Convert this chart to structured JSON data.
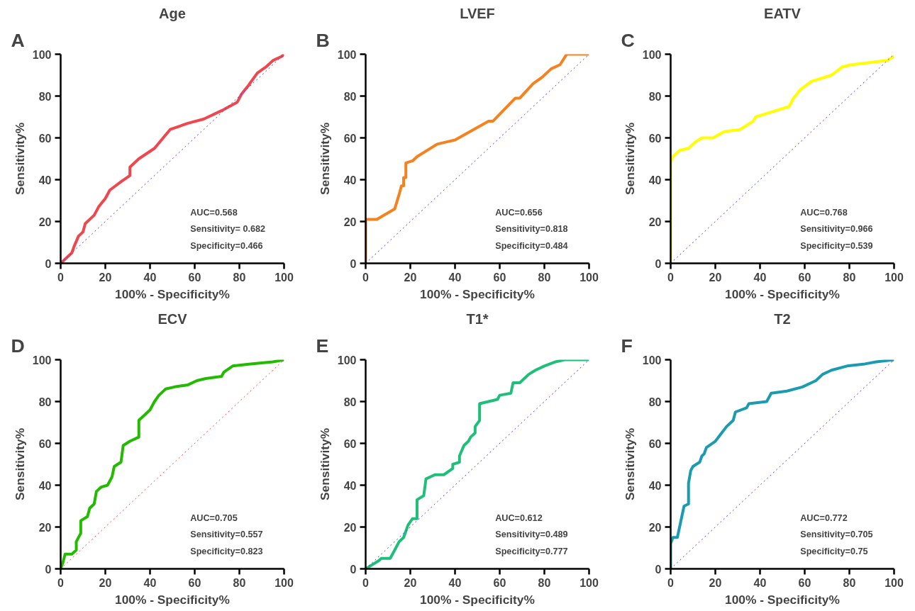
{
  "chart_data": [
    {
      "type": "line",
      "title": "Age",
      "xlabel": "100% - Specificity%",
      "ylabel": "Sensitivity%",
      "xlim": [
        0,
        100
      ],
      "ylim": [
        0,
        100
      ],
      "xticks": [
        0,
        20,
        40,
        60,
        80,
        100
      ],
      "yticks": [
        0,
        20,
        40,
        60,
        80,
        100
      ],
      "grid": false,
      "marker": "none",
      "annotations": [
        "A",
        "AUC=0.568",
        "Sensitivity= 0.682",
        "Specificity=0.466"
      ],
      "series": [
        {
          "color": "#f0474f",
          "line_style": "solid",
          "x": [
            0,
            5,
            6,
            8,
            10,
            11,
            15,
            17,
            20,
            22,
            27,
            31,
            31,
            35,
            42,
            49,
            57,
            64,
            72,
            79,
            81,
            84,
            88,
            92,
            95,
            99,
            100
          ],
          "values": [
            0,
            5,
            8,
            13,
            15,
            19,
            23,
            27,
            31,
            35,
            39,
            42,
            46,
            50,
            55,
            64,
            67,
            69,
            73,
            77,
            81,
            85,
            91,
            94,
            97,
            99,
            100
          ]
        },
        {
          "color": "#4040ff",
          "line_style": "dotted",
          "x": [
            0,
            100
          ],
          "values": [
            0,
            100
          ]
        }
      ]
    },
    {
      "type": "line",
      "title": "LVEF",
      "xlabel": "100% - Specificity%",
      "ylabel": "Sensitivity%",
      "xlim": [
        0,
        100
      ],
      "ylim": [
        0,
        100
      ],
      "xticks": [
        0,
        20,
        40,
        60,
        80,
        100
      ],
      "yticks": [
        0,
        20,
        40,
        60,
        80,
        100
      ],
      "grid": false,
      "marker": "none",
      "annotations": [
        "B",
        "AUC=0.656",
        "Sensitivity=0.818",
        "Specificity=0.484"
      ],
      "series": [
        {
          "color": "#f5821f",
          "line_style": "solid",
          "x": [
            0,
            0,
            2,
            5,
            13,
            15,
            16,
            17,
            17,
            18,
            18,
            21,
            23,
            32,
            36,
            40,
            55,
            57,
            67,
            69,
            75,
            79,
            83,
            87,
            90,
            100
          ],
          "values": [
            0,
            21,
            21,
            21,
            26,
            33,
            37,
            37,
            41,
            41,
            48,
            49,
            51,
            57,
            58,
            59,
            68,
            68,
            79,
            79,
            86,
            89,
            93,
            95,
            100,
            100
          ]
        },
        {
          "color": "#4040ff",
          "line_style": "dotted",
          "x": [
            0,
            100
          ],
          "values": [
            0,
            100
          ]
        }
      ]
    },
    {
      "type": "line",
      "title": "EATV",
      "xlabel": "100% - Specificity%",
      "ylabel": "Sensitivity%",
      "xlim": [
        0,
        100
      ],
      "ylim": [
        0,
        100
      ],
      "xticks": [
        0,
        20,
        40,
        60,
        80,
        100
      ],
      "yticks": [
        0,
        20,
        40,
        60,
        80,
        100
      ],
      "grid": false,
      "marker": "none",
      "annotations": [
        "C",
        "AUC=0.768",
        "Sensitivity=0.966",
        "Specificity=0.539"
      ],
      "series": [
        {
          "color": "#ffff00",
          "line_style": "solid",
          "x": [
            0,
            0,
            1,
            4,
            8,
            11,
            14,
            19,
            24,
            31,
            37,
            38,
            44,
            53,
            55,
            58,
            63,
            72,
            77,
            81,
            89,
            97,
            100
          ],
          "values": [
            0,
            48,
            51,
            54,
            55,
            58,
            60,
            60,
            63,
            64,
            68,
            70,
            72,
            75,
            79,
            83,
            87,
            90,
            94,
            95,
            96,
            97,
            99
          ]
        },
        {
          "color": "#4040ff",
          "line_style": "dotted",
          "x": [
            0,
            100
          ],
          "values": [
            0,
            100
          ]
        }
      ]
    },
    {
      "type": "line",
      "title": "ECV",
      "xlabel": "100% - Specificity%",
      "ylabel": "Sensitivity%",
      "xlim": [
        0,
        100
      ],
      "ylim": [
        0,
        100
      ],
      "xticks": [
        0,
        20,
        40,
        60,
        80,
        100
      ],
      "yticks": [
        0,
        20,
        40,
        60,
        80,
        100
      ],
      "grid": false,
      "marker": "none",
      "annotations": [
        "D",
        "AUC=0.705",
        "Sensitivity=0.557",
        "Specificity=0.823"
      ],
      "series": [
        {
          "color": "#22bb00",
          "line_style": "solid",
          "x": [
            0,
            1,
            2,
            5,
            7,
            7,
            9,
            9,
            12,
            13,
            15,
            16,
            18,
            21,
            23,
            24,
            27,
            28,
            31,
            35,
            35,
            38,
            40,
            42,
            44,
            47,
            51,
            57,
            61,
            65,
            72,
            73,
            77,
            85,
            95,
            100
          ],
          "values": [
            0,
            3,
            7,
            7,
            9,
            13,
            17,
            23,
            25,
            29,
            31,
            37,
            39,
            40,
            44,
            49,
            51,
            59,
            61,
            63,
            71,
            74,
            76,
            80,
            83,
            86,
            87,
            88,
            90,
            91,
            92,
            94,
            97,
            98,
            99,
            100
          ]
        },
        {
          "color": "#ff4040",
          "line_style": "dotted",
          "x": [
            0,
            100
          ],
          "values": [
            0,
            100
          ]
        }
      ]
    },
    {
      "type": "line",
      "title": "T1*",
      "xlabel": "100% - Specificity%",
      "ylabel": "Sensitivity%",
      "xlim": [
        0,
        100
      ],
      "ylim": [
        0,
        100
      ],
      "xticks": [
        0,
        20,
        40,
        60,
        80,
        100
      ],
      "yticks": [
        0,
        20,
        40,
        60,
        80,
        100
      ],
      "grid": false,
      "marker": "none",
      "annotations": [
        "E",
        "AUC=0.612",
        "Sensitivity=0.489",
        "Specificity=0.777"
      ],
      "series": [
        {
          "color": "#1fbf7a",
          "line_style": "solid",
          "x": [
            0,
            3,
            6,
            7,
            11,
            13,
            15,
            17,
            19,
            21,
            23,
            23,
            26,
            27,
            31,
            35,
            39,
            39,
            42,
            42,
            44,
            45,
            46,
            47,
            49,
            49,
            51,
            51,
            55,
            59,
            60,
            65,
            66,
            69,
            71,
            73,
            76,
            80,
            85,
            89,
            100
          ],
          "values": [
            0,
            2,
            4,
            5,
            5,
            9,
            13,
            15,
            21,
            24,
            24,
            33,
            35,
            43,
            45,
            45,
            48,
            50,
            51,
            54,
            59,
            60,
            61,
            63,
            65,
            68,
            71,
            79,
            80,
            81,
            83,
            84,
            89,
            89,
            91,
            93,
            95,
            97,
            99,
            100,
            100
          ]
        },
        {
          "color": "#4040ff",
          "line_style": "dotted",
          "x": [
            0,
            100
          ],
          "values": [
            0,
            100
          ]
        }
      ]
    },
    {
      "type": "line",
      "title": "T2",
      "xlabel": "100% - Specificity%",
      "ylabel": "Sensitivity%",
      "xlim": [
        0,
        100
      ],
      "ylim": [
        0,
        100
      ],
      "xticks": [
        0,
        20,
        40,
        60,
        80,
        100
      ],
      "yticks": [
        0,
        20,
        40,
        60,
        80,
        100
      ],
      "grid": false,
      "marker": "none",
      "annotations": [
        "F",
        "AUC=0.772",
        "Sensitivity=0.705",
        "Specificity=0.75"
      ],
      "series": [
        {
          "color": "#1a9bb0",
          "line_style": "solid",
          "x": [
            0,
            0,
            1,
            3,
            4,
            5,
            6,
            8,
            8,
            9,
            10,
            13,
            14,
            15,
            16,
            20,
            25,
            28,
            29,
            34,
            35,
            43,
            45,
            52,
            59,
            65,
            68,
            72,
            79,
            87,
            92,
            100
          ],
          "values": [
            0,
            12,
            15,
            15,
            20,
            25,
            30,
            31,
            41,
            47,
            49,
            51,
            54,
            55,
            58,
            61,
            68,
            71,
            75,
            77,
            79,
            80,
            84,
            85,
            87,
            90,
            93,
            95,
            97,
            98,
            99,
            100
          ]
        },
        {
          "color": "#4040ff",
          "line_style": "dotted",
          "x": [
            0,
            100
          ],
          "values": [
            0,
            100
          ]
        }
      ]
    }
  ]
}
